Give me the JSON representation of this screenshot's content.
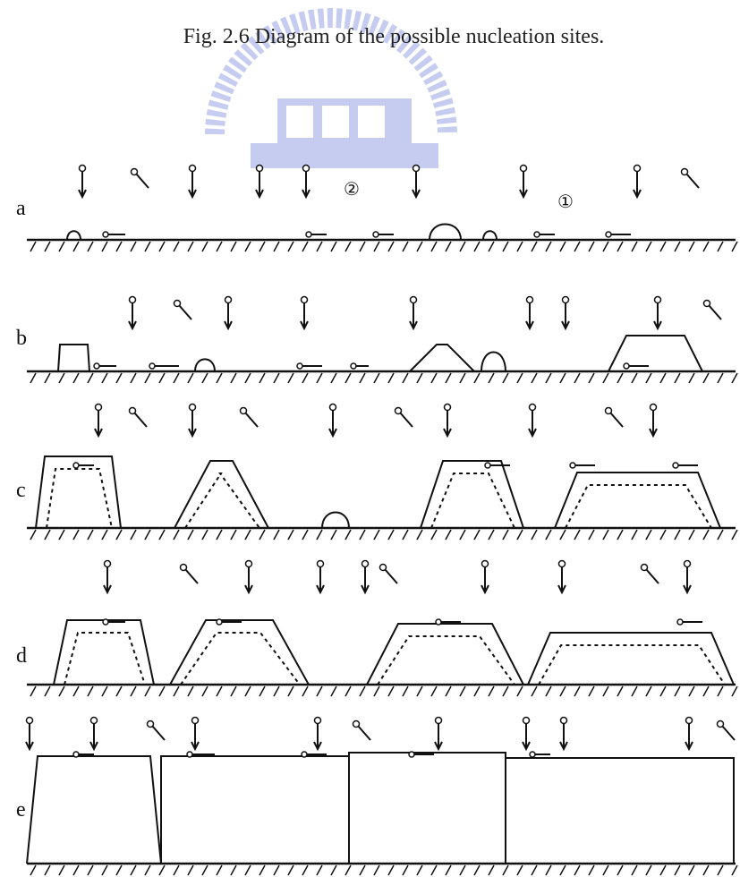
{
  "caption": "Fig. 2.6    Diagram of the possible nucleation sites.",
  "panels": [
    {
      "label": "a"
    },
    {
      "label": "b"
    },
    {
      "label": "c"
    },
    {
      "label": "d"
    },
    {
      "label": "e"
    }
  ],
  "site_markers": [
    "②",
    "①"
  ]
}
